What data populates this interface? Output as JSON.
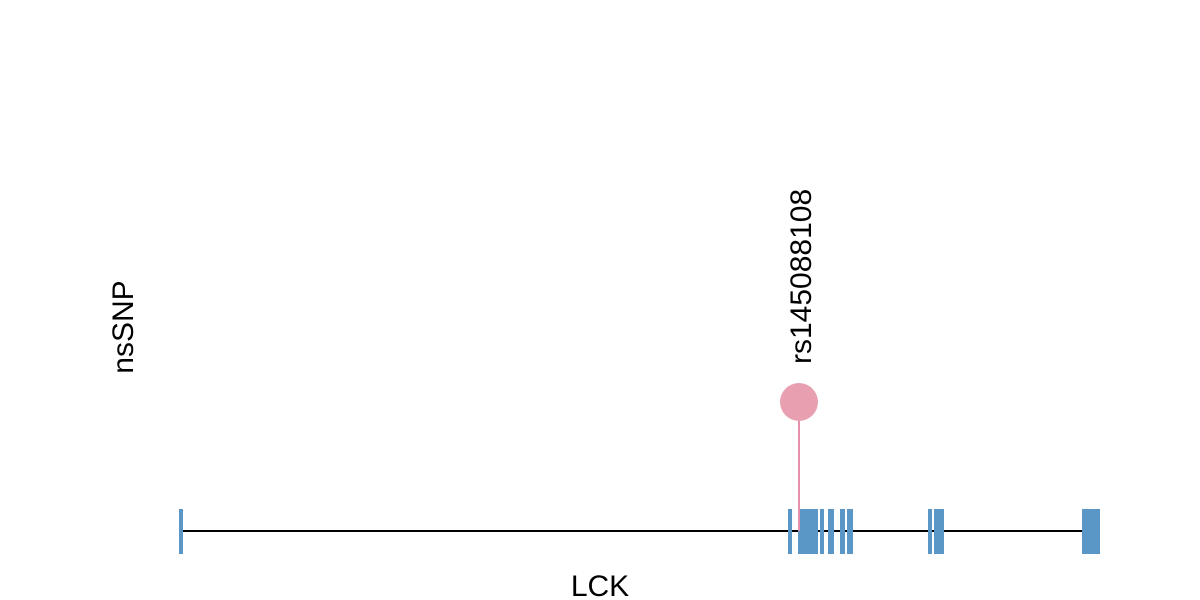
{
  "track_label": "nsSNP",
  "gene": {
    "name": "LCK"
  },
  "snp": {
    "label": "rs145088108"
  }
}
